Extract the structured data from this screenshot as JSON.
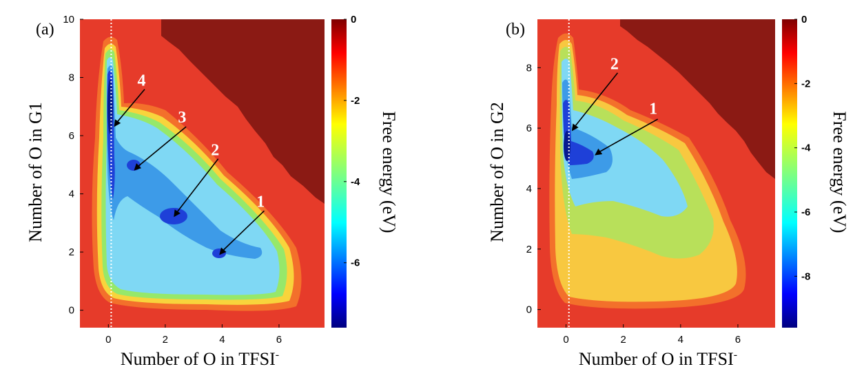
{
  "chart_data": [
    {
      "type": "heatmap",
      "panel_label": "(a)",
      "xlabel_main": "Number of  O in TFSI",
      "xlabel_sup": "-",
      "ylabel": "Number of  O in G1",
      "colorbar_label": "Free energy (eV)",
      "xlim": [
        -1,
        7.6
      ],
      "ylim": [
        -0.6,
        10
      ],
      "x_ticks": [
        "0",
        "2",
        "4",
        "6"
      ],
      "y_ticks": [
        "0",
        "2",
        "4",
        "6",
        "8",
        "10"
      ],
      "colorbar_range": [
        -7.6,
        0
      ],
      "colorbar_ticks": [
        "0",
        "-2",
        "-4",
        "-6"
      ],
      "reference_line_x": 0.1,
      "minima": [
        {
          "label": "1",
          "x": 3.9,
          "y": 1.9
        },
        {
          "label": "2",
          "x": 2.3,
          "y": 3.2
        },
        {
          "label": "3",
          "x": 0.9,
          "y": 4.8
        },
        {
          "label": "4",
          "x": 0.2,
          "y": 6.3
        }
      ],
      "free_energy_regions": [
        {
          "level": 0,
          "description": "unsampled region, upper right"
        },
        {
          "level": -1,
          "description": "background outside sampled region"
        },
        {
          "level": -5,
          "description": "broad basin"
        },
        {
          "level": -7,
          "description": "deep minima along x≈0 and diagonal"
        }
      ]
    },
    {
      "type": "heatmap",
      "panel_label": "(b)",
      "xlabel_main": "Number of  O in TFSI",
      "xlabel_sup": "-",
      "ylabel": "Number of  O in G2",
      "colorbar_label": "Free energy (eV)",
      "xlim": [
        -1,
        7.3
      ],
      "ylim": [
        -0.6,
        9.6
      ],
      "x_ticks": [
        "0",
        "2",
        "4",
        "6"
      ],
      "y_ticks": [
        "0",
        "2",
        "4",
        "6",
        "8"
      ],
      "colorbar_range": [
        -9.6,
        0
      ],
      "colorbar_ticks": [
        "0",
        "-2",
        "-4",
        "-6",
        "-8"
      ],
      "reference_line_x": 0.1,
      "minima": [
        {
          "label": "1",
          "x": 1.0,
          "y": 5.1
        },
        {
          "label": "2",
          "x": 0.2,
          "y": 5.9
        }
      ],
      "free_energy_regions": [
        {
          "level": 0,
          "description": "unsampled region, upper right"
        },
        {
          "level": -1,
          "description": "background outside sampled region"
        },
        {
          "level": -4,
          "description": "broad lower basin"
        },
        {
          "level": -8,
          "description": "deep minimum near x≈0, y≈5.5"
        }
      ]
    }
  ]
}
